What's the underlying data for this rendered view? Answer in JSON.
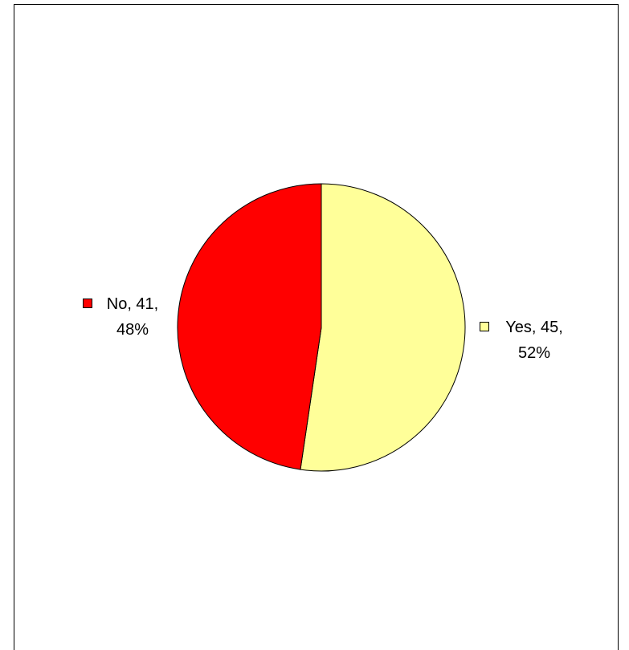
{
  "chart_data": {
    "type": "pie",
    "values": [
      45,
      41
    ],
    "value_labels": [
      "Yes, 45, 52%",
      "No, 41, 48%"
    ],
    "colors": [
      "#ffff99",
      "#ff0000"
    ]
  }
}
